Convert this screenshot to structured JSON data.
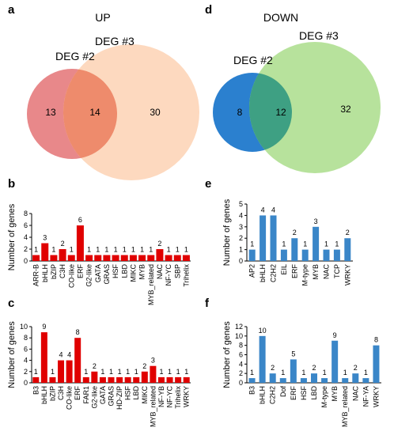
{
  "colors": {
    "red": "#e00000",
    "blue": "#3a86c8",
    "up_deg2": "#e8888a",
    "up_deg3": "#fdd9bf",
    "up_overlap": "#ee8b6c",
    "down_deg2": "#2b80cf",
    "down_deg3": "#b7e29c",
    "down_overlap": "#3ea083"
  },
  "venns": [
    {
      "panel_letter": "a",
      "title": "UP",
      "left_label": "DEG #2",
      "right_label": "DEG #3",
      "left_only": "13",
      "overlap": "14",
      "right_only": "30"
    },
    {
      "panel_letter": "d",
      "title": "DOWN",
      "left_label": "DEG #2",
      "right_label": "DEG #3",
      "left_only": "8",
      "overlap": "12",
      "right_only": "32"
    }
  ],
  "chart_data": [
    {
      "panel_letter": "b",
      "type": "bar",
      "color": "red",
      "ylabel": "Number of genes",
      "ylim": [
        0,
        8
      ],
      "yticks": [
        0,
        2,
        4,
        6,
        8
      ],
      "categories": [
        "ARR-B",
        "bHLH",
        "bZIP",
        "C3H",
        "CO-like",
        "ERF",
        "G2-like",
        "GATA",
        "GRAS",
        "HSF",
        "LBD",
        "MIKC",
        "MYB",
        "MYB_related",
        "NAC",
        "NF-YC",
        "SBP",
        "Trihelix"
      ],
      "values": [
        1,
        3,
        1,
        2,
        1,
        6,
        1,
        1,
        1,
        1,
        1,
        1,
        1,
        1,
        2,
        1,
        1,
        1
      ]
    },
    {
      "panel_letter": "c",
      "type": "bar",
      "color": "red",
      "ylabel": "Number of genes",
      "ylim": [
        0,
        10
      ],
      "yticks": [
        0,
        2,
        4,
        6,
        8,
        10
      ],
      "categories": [
        "B3",
        "bHLH",
        "bZIP",
        "C3H",
        "CO-like",
        "ERF",
        "FAR1",
        "G2-like",
        "GATA",
        "GRAS",
        "HD-ZIP",
        "HSF",
        "LBD",
        "MIKC",
        "MYB_related",
        "NF-YB",
        "NF-YC",
        "Trihelix",
        "WRKY"
      ],
      "values": [
        1,
        9,
        1,
        4,
        4,
        8,
        1,
        2,
        1,
        1,
        1,
        1,
        1,
        2,
        3,
        1,
        1,
        1,
        1
      ]
    },
    {
      "panel_letter": "e",
      "type": "bar",
      "color": "blue",
      "ylabel": "Number of genes",
      "ylim": [
        0,
        5
      ],
      "yticks": [
        0,
        1,
        2,
        3,
        4,
        5
      ],
      "categories": [
        "AP2",
        "bHLH",
        "C2H2",
        "EIL",
        "ERF",
        "M-type",
        "MYB",
        "NAC",
        "TCP",
        "WRKY"
      ],
      "values": [
        1,
        4,
        4,
        1,
        2,
        1,
        3,
        1,
        1,
        2
      ]
    },
    {
      "panel_letter": "f",
      "type": "bar",
      "color": "blue",
      "ylabel": "Number of genes",
      "ylim": [
        0,
        12
      ],
      "yticks": [
        0,
        2,
        4,
        6,
        8,
        10,
        12
      ],
      "categories": [
        "B3",
        "bHLH",
        "C2H2",
        "Dof",
        "ERF",
        "HSF",
        "LBD",
        "M-type",
        "MYB",
        "MYB_related",
        "NAC",
        "NF-YA",
        "WRKY"
      ],
      "values": [
        1,
        10,
        2,
        1,
        5,
        1,
        2,
        1,
        9,
        1,
        2,
        1,
        8
      ]
    }
  ]
}
